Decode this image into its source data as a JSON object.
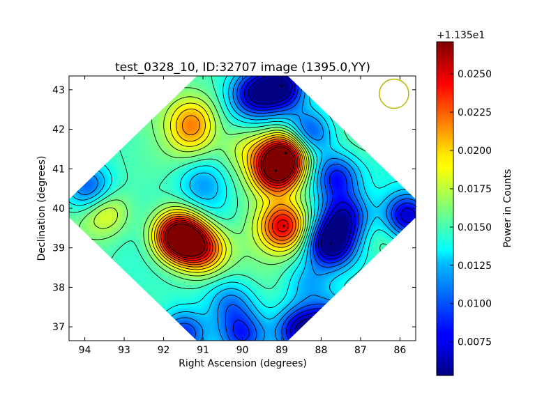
{
  "chart_data": {
    "type": "heatmap",
    "title": "test_0328_10, ID:32707 image (1395.0,YY)",
    "xlabel": "Right Ascension (degrees)",
    "ylabel": "Declination (degrees)",
    "xlim": [
      94.4,
      85.6
    ],
    "ylim": [
      36.65,
      43.35
    ],
    "xticks": [
      "94",
      "93",
      "92",
      "91",
      "90",
      "89",
      "88",
      "87",
      "86"
    ],
    "yticks": [
      "37",
      "38",
      "39",
      "40",
      "41",
      "42",
      "43"
    ],
    "colorbar": {
      "label": "Power in Counts",
      "offset_label": "+1.135e1",
      "range": [
        0.0053,
        0.0271
      ],
      "ticks": [
        "0.0075",
        "0.0100",
        "0.0125",
        "0.0150",
        "0.0175",
        "0.0200",
        "0.0225",
        "0.0250"
      ],
      "colormap": "jet"
    },
    "footprint": {
      "center_ra": 90.0,
      "center_dec": 40.0,
      "shape": "diamond"
    },
    "beam_marker": {
      "ra": 86.15,
      "dec": 42.9,
      "color": "#b8b800"
    },
    "peaks": [
      {
        "ra": 89.15,
        "dec": 40.95,
        "value": 0.0262
      },
      {
        "ra": 88.9,
        "dec": 41.4,
        "value": 0.0255
      },
      {
        "ra": 88.95,
        "dec": 39.55,
        "value": 0.0245
      },
      {
        "ra": 91.5,
        "dec": 39.2,
        "value": 0.024
      },
      {
        "ra": 91.7,
        "dec": 39.35,
        "value": 0.0228
      },
      {
        "ra": 91.0,
        "dec": 38.95,
        "value": 0.0225
      },
      {
        "ra": 91.3,
        "dec": 41.9,
        "value": 0.0185
      },
      {
        "ra": 91.25,
        "dec": 42.3,
        "value": 0.0185
      },
      {
        "ra": 93.5,
        "dec": 39.9,
        "value": 0.019
      },
      {
        "ra": 91.0,
        "dec": 40.6,
        "value": 0.0115
      },
      {
        "ra": 90.6,
        "dec": 39.8,
        "value": 0.0138
      },
      {
        "ra": 91.15,
        "dec": 38.3,
        "value": 0.0148
      },
      {
        "ra": 89.0,
        "dec": 43.1,
        "value": 0.006
      },
      {
        "ra": 89.7,
        "dec": 42.9,
        "value": 0.0078
      },
      {
        "ra": 87.75,
        "dec": 39.1,
        "value": 0.0055
      },
      {
        "ra": 87.4,
        "dec": 39.8,
        "value": 0.0082
      },
      {
        "ra": 88.3,
        "dec": 38.1,
        "value": 0.012
      },
      {
        "ra": 87.7,
        "dec": 37.0,
        "value": 0.0062
      },
      {
        "ra": 88.5,
        "dec": 36.9,
        "value": 0.007
      },
      {
        "ra": 91.5,
        "dec": 36.8,
        "value": 0.0085
      },
      {
        "ra": 90.0,
        "dec": 36.8,
        "value": 0.0095
      },
      {
        "ra": 87.6,
        "dec": 40.8,
        "value": 0.0085
      },
      {
        "ra": 93.9,
        "dec": 40.5,
        "value": 0.0095
      },
      {
        "ra": 85.8,
        "dec": 39.8,
        "value": 0.0068
      },
      {
        "ra": 86.35,
        "dec": 39.3,
        "value": 0.0168
      },
      {
        "ra": 86.3,
        "dec": 41.1,
        "value": 0.014
      },
      {
        "ra": 88.3,
        "dec": 41.9,
        "value": 0.009
      },
      {
        "ra": 90.3,
        "dec": 37.6,
        "value": 0.011
      },
      {
        "ra": 92.8,
        "dec": 41.7,
        "value": 0.0145
      },
      {
        "ra": 89.9,
        "dec": 41.5,
        "value": 0.018
      }
    ]
  }
}
